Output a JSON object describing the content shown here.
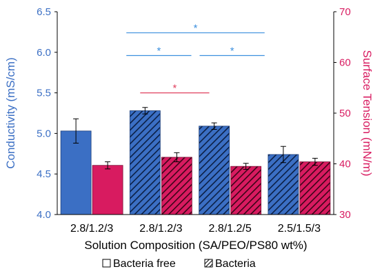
{
  "chart_data": {
    "type": "bar",
    "xlabel": "Solution Composition (SA/PEO/PS80 wt%)",
    "categories": [
      "2.8/1.2/3",
      "2.8/1.2/3",
      "2.8/1.2/5",
      "2.5/1.5/3"
    ],
    "y_left": {
      "label": "Conductivity (mS/cm)",
      "range": [
        4.0,
        6.5
      ],
      "ticks": [
        "4.0",
        "4.5",
        "5.0",
        "5.5",
        "6.0",
        "6.5"
      ],
      "color": "#3b6fc4"
    },
    "y_right": {
      "label": "Surface Tension (mN/m)",
      "range": [
        30,
        70
      ],
      "ticks": [
        "30",
        "40",
        "50",
        "60",
        "70"
      ],
      "color": "#d81b60"
    },
    "series": [
      {
        "axis": "left",
        "values": [
          5.03,
          5.28,
          5.09,
          4.74
        ],
        "errors": [
          0.15,
          0.04,
          0.04,
          0.1
        ],
        "color": "#3b6fc4"
      },
      {
        "axis": "right",
        "values": [
          39.7,
          41.3,
          39.5,
          40.4
        ],
        "errors": [
          0.7,
          0.9,
          0.6,
          0.7
        ],
        "color": "#d81b60"
      }
    ],
    "bar_pattern": [
      "solid",
      "hatched",
      "hatched",
      "hatched"
    ],
    "significance": [
      {
        "from": 1,
        "to": 3,
        "axis": "left",
        "level": 6.24,
        "label": "*",
        "color": "#3b8fde"
      },
      {
        "from": 1,
        "to": 2,
        "axis": "left",
        "level": 5.96,
        "label": "*",
        "color": "#3b8fde"
      },
      {
        "from": 2,
        "to": 3,
        "axis": "left",
        "level": 5.96,
        "label": "*",
        "color": "#3b8fde"
      },
      {
        "from": 1.2,
        "to": 2.2,
        "axis": "left",
        "level": 5.5,
        "label": "*",
        "color": "#e0405e"
      }
    ],
    "legend": {
      "position": "bottom",
      "items": [
        {
          "label": "Bacteria free",
          "pattern": "solid"
        },
        {
          "label": "Bacteria",
          "pattern": "hatched"
        }
      ]
    },
    "grid": false
  }
}
